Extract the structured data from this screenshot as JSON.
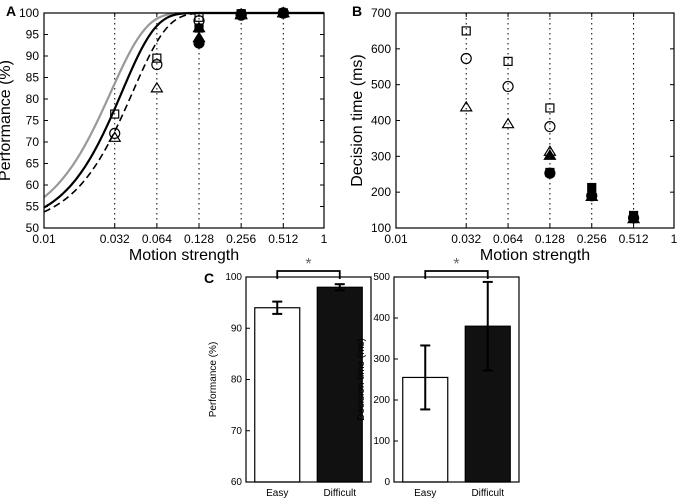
{
  "chart_data": [
    {
      "panel": "A",
      "type": "scatter",
      "xscale": "log",
      "xlabel": "Motion strength",
      "ylabel": "Performance (%)",
      "xlim": [
        0.01,
        1
      ],
      "ylim": [
        50,
        100
      ],
      "xticks": [
        0.01,
        0.032,
        0.064,
        0.128,
        0.256,
        0.512,
        1
      ],
      "xtick_labels": [
        "0.01",
        "0.032",
        "0.064",
        "0.128",
        "0.256",
        "0.512",
        "1"
      ],
      "yticks": [
        50,
        55,
        60,
        65,
        70,
        75,
        80,
        85,
        90,
        95,
        100
      ],
      "ytick_labels": [
        "50",
        "55",
        "60",
        "65",
        "70",
        "75",
        "80",
        "85",
        "90",
        "95",
        "100"
      ],
      "vgrid_dotted_at": [
        0.032,
        0.064,
        0.128,
        0.256,
        0.512
      ],
      "series": [
        {
          "name": "square",
          "marker": "square",
          "fill": "open",
          "x": [
            0.032,
            0.064,
            0.128,
            0.256,
            0.512
          ],
          "y": [
            76.5,
            89.5,
            99.0,
            99.8,
            100
          ]
        },
        {
          "name": "circle",
          "marker": "circle",
          "fill": "open",
          "x": [
            0.032,
            0.064,
            0.128,
            0.256,
            0.512
          ],
          "y": [
            72,
            88,
            98.2,
            99.7,
            100
          ]
        },
        {
          "name": "triangle",
          "marker": "triangle",
          "fill": "open",
          "x": [
            0.032,
            0.064,
            0.128,
            0.256,
            0.512
          ],
          "y": [
            71,
            82.5,
            96.5,
            99.5,
            100
          ]
        },
        {
          "name": "filled-triangle",
          "marker": "triangle",
          "fill": "filled",
          "x": [
            0.128,
            0.256,
            0.512
          ],
          "y": [
            94.2,
            99.7,
            100
          ]
        },
        {
          "name": "filled-circle",
          "marker": "circle",
          "fill": "filled",
          "x": [
            0.128,
            0.256,
            0.512
          ],
          "y": [
            93,
            99.5,
            100
          ]
        },
        {
          "name": "filled-square",
          "marker": "square",
          "fill": "filled",
          "x": [
            0.128,
            0.256,
            0.512
          ],
          "y": [
            96.5,
            99.8,
            100
          ]
        }
      ],
      "fits": [
        {
          "name": "gray-fit",
          "style": "solid",
          "color": "#999999",
          "threshold": 0.03,
          "slope": 1.7
        },
        {
          "name": "black-fit",
          "style": "solid",
          "color": "#000000",
          "threshold": 0.036,
          "slope": 1.8
        },
        {
          "name": "dashed-fit",
          "style": "dashed",
          "color": "#000000",
          "threshold": 0.043,
          "slope": 1.75
        }
      ]
    },
    {
      "panel": "B",
      "type": "scatter",
      "xscale": "log",
      "xlabel": "Motion strength",
      "ylabel": "Decision time (ms)",
      "xlim": [
        0.01,
        1
      ],
      "ylim": [
        100,
        700
      ],
      "xticks": [
        0.01,
        0.032,
        0.064,
        0.128,
        0.256,
        0.512,
        1
      ],
      "xtick_labels": [
        "0.01",
        "0.032",
        "0.064",
        "0.128",
        "0.256",
        "0.512",
        "1"
      ],
      "yticks": [
        100,
        200,
        300,
        400,
        500,
        600,
        700
      ],
      "ytick_labels": [
        "100",
        "200",
        "300",
        "400",
        "500",
        "600",
        "700"
      ],
      "vgrid_dotted_at": [
        0.032,
        0.064,
        0.128,
        0.256,
        0.512
      ],
      "series": [
        {
          "name": "square",
          "marker": "square",
          "fill": "open",
          "x": [
            0.032,
            0.064,
            0.128
          ],
          "y": [
            650,
            565,
            435
          ]
        },
        {
          "name": "circle",
          "marker": "circle",
          "fill": "open",
          "x": [
            0.032,
            0.064,
            0.128
          ],
          "y": [
            573,
            495,
            383
          ]
        },
        {
          "name": "triangle",
          "marker": "triangle",
          "fill": "open",
          "x": [
            0.032,
            0.064,
            0.128
          ],
          "y": [
            437,
            390,
            313
          ]
        },
        {
          "name": "filled-triangle",
          "marker": "triangle",
          "fill": "filled",
          "x": [
            0.128,
            0.256,
            0.512
          ],
          "y": [
            302,
            187,
            125
          ]
        },
        {
          "name": "filled-circle",
          "marker": "circle",
          "fill": "filled",
          "x": [
            0.128,
            0.256,
            0.512
          ],
          "y": [
            253,
            190,
            128
          ]
        },
        {
          "name": "filled-square",
          "marker": "square",
          "fill": "filled",
          "x": [
            0.128,
            0.256,
            0.512
          ],
          "y": [
            255,
            213,
            135
          ]
        }
      ]
    },
    {
      "panel": "C",
      "type": "bar",
      "categories": [
        "Easy",
        "Difficult"
      ],
      "values": [
        94,
        98
      ],
      "errors": [
        1.2,
        0.6
      ],
      "bar_colors": [
        "#ffffff",
        "#111111"
      ],
      "ylabel": "Performance (%)",
      "ylim": [
        60,
        100
      ],
      "yticks": [
        60,
        70,
        80,
        90,
        100
      ],
      "ytick_labels": [
        "60",
        "70",
        "80",
        "90",
        "100"
      ],
      "significance": "*"
    },
    {
      "panel": "C",
      "type": "bar",
      "categories": [
        "Easy",
        "Difficult"
      ],
      "values": [
        255,
        380
      ],
      "errors": [
        78,
        108
      ],
      "bar_colors": [
        "#ffffff",
        "#111111"
      ],
      "ylabel": "Decision time (ms)",
      "ylim": [
        0,
        500
      ],
      "yticks": [
        0,
        100,
        200,
        300,
        400,
        500
      ],
      "ytick_labels": [
        "0",
        "100",
        "200",
        "300",
        "400",
        "500"
      ],
      "significance": "*"
    }
  ],
  "panel_letters": {
    "a": "A",
    "b": "B",
    "c": "C"
  }
}
